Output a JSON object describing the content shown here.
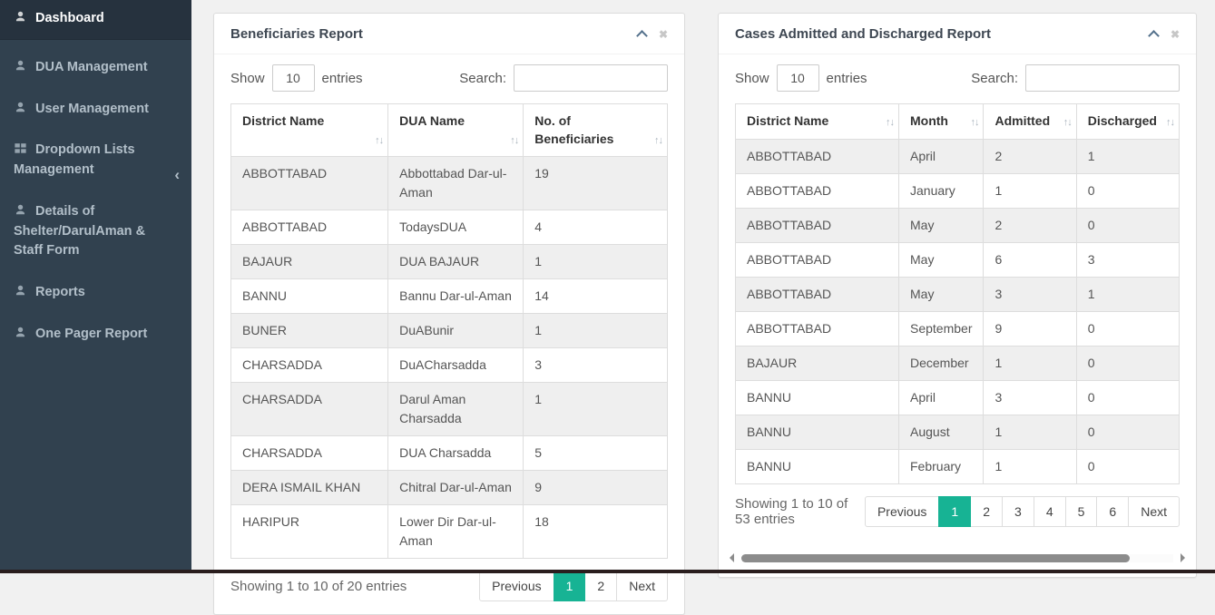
{
  "sidebar": {
    "items": [
      {
        "label": "Dashboard",
        "icon": "user-icon",
        "active": true
      },
      {
        "label": "DUA Management",
        "icon": "user-icon",
        "active": false
      },
      {
        "label": "User Management",
        "icon": "user-icon",
        "active": false
      },
      {
        "label": "Dropdown Lists Management",
        "icon": "grid-icon",
        "active": false,
        "chevron": "‹"
      },
      {
        "label": "Details of Shelter/DarulAman & Staff Form",
        "icon": "user-icon",
        "active": false
      },
      {
        "label": "Reports",
        "icon": "user-icon",
        "active": false
      },
      {
        "label": "One Pager Report",
        "icon": "user-icon",
        "active": false
      }
    ]
  },
  "icons": {
    "sort_glyph": "↑↓",
    "close_glyph": "✖"
  },
  "panels": [
    {
      "title": "Beneficiaries Report",
      "show_label": "Show",
      "entries_label": "entries",
      "page_size": "10",
      "search_label": "Search:",
      "search_value": "",
      "columns": [
        "District Name",
        "DUA Name",
        "No. of Beneficiaries"
      ],
      "rows": [
        [
          "ABBOTTABAD",
          "Abbottabad Dar-ul-Aman",
          "19"
        ],
        [
          "ABBOTTABAD",
          "TodaysDUA",
          "4"
        ],
        [
          "BAJAUR",
          "DUA BAJAUR",
          "1"
        ],
        [
          "BANNU",
          "Bannu Dar-ul-Aman",
          "14"
        ],
        [
          "BUNER",
          "DuABunir",
          "1"
        ],
        [
          "CHARSADDA",
          "DuACharsadda",
          "3"
        ],
        [
          "CHARSADDA",
          "Darul Aman Charsadda",
          "1"
        ],
        [
          "CHARSADDA",
          "DUA Charsadda",
          "5"
        ],
        [
          "DERA ISMAIL KHAN",
          "Chitral Dar-ul-Aman",
          "9"
        ],
        [
          "HARIPUR",
          "Lower Dir Dar-ul-Aman",
          "18"
        ]
      ],
      "footer": "Showing 1 to 10 of 20 entries",
      "pages": [
        "Previous",
        "1",
        "2",
        "Next"
      ],
      "active_page": "1",
      "has_scrollbar": false
    },
    {
      "title": "Cases Admitted and Discharged Report",
      "show_label": "Show",
      "entries_label": "entries",
      "page_size": "10",
      "search_label": "Search:",
      "search_value": "",
      "columns": [
        "District Name",
        "Month",
        "Admitted",
        "Discharged"
      ],
      "rows": [
        [
          "ABBOTTABAD",
          "April",
          "2",
          "1"
        ],
        [
          "ABBOTTABAD",
          "January",
          "1",
          "0"
        ],
        [
          "ABBOTTABAD",
          "May",
          "2",
          "0"
        ],
        [
          "ABBOTTABAD",
          "May",
          "6",
          "3"
        ],
        [
          "ABBOTTABAD",
          "May",
          "3",
          "1"
        ],
        [
          "ABBOTTABAD",
          "September",
          "9",
          "0"
        ],
        [
          "BAJAUR",
          "December",
          "1",
          "0"
        ],
        [
          "BANNU",
          "April",
          "3",
          "0"
        ],
        [
          "BANNU",
          "August",
          "1",
          "0"
        ],
        [
          "BANNU",
          "February",
          "1",
          "0"
        ]
      ],
      "footer": "Showing 1 to 10 of 53 entries",
      "pages": [
        "Previous",
        "1",
        "2",
        "3",
        "4",
        "5",
        "6",
        "Next"
      ],
      "active_page": "1",
      "has_scrollbar": true
    }
  ],
  "colors": {
    "accent_teal": "#17b394",
    "sidebar_bg": "#31414f",
    "sidebar_active_bg": "#26323e",
    "page_bg": "#f1f1f1",
    "stripe_bg": "#efefef"
  }
}
